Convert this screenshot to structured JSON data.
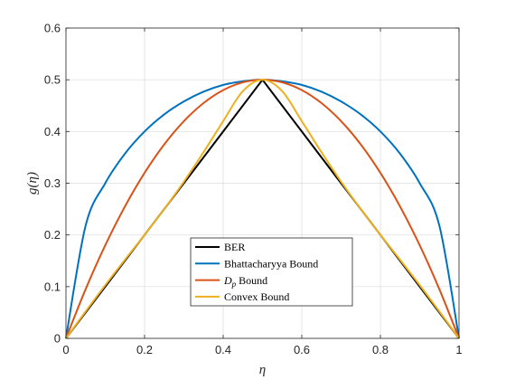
{
  "chart_data": {
    "type": "line",
    "xlabel": "η",
    "ylabel": "g(η)",
    "xlim": [
      0,
      1
    ],
    "ylim": [
      0,
      0.6
    ],
    "xticks": [
      0,
      0.2,
      0.4,
      0.6,
      0.8,
      1
    ],
    "yticks": [
      0,
      0.1,
      0.2,
      0.3,
      0.4,
      0.5,
      0.6
    ],
    "xtick_labels": [
      "0",
      "0.2",
      "0.4",
      "0.6",
      "0.8",
      "1"
    ],
    "ytick_labels": [
      "0",
      "0.1",
      "0.2",
      "0.3",
      "0.4",
      "0.5",
      "0.6"
    ],
    "grid": true,
    "legend_position": "bottom-center",
    "x": [
      0,
      0.05,
      0.1,
      0.15,
      0.2,
      0.25,
      0.3,
      0.35,
      0.4,
      0.45,
      0.5,
      0.55,
      0.6,
      0.65,
      0.7,
      0.75,
      0.8,
      0.85,
      0.9,
      0.95,
      1
    ],
    "series": [
      {
        "name": "BER",
        "color": "#000000",
        "values": [
          0,
          0.05,
          0.1,
          0.15,
          0.2,
          0.25,
          0.3,
          0.35,
          0.4,
          0.45,
          0.5,
          0.45,
          0.4,
          0.35,
          0.3,
          0.25,
          0.2,
          0.15,
          0.1,
          0.05,
          0
        ]
      },
      {
        "name": "Bhattacharyya Bound",
        "color": "#0072BD",
        "values": [
          0,
          0.218,
          0.3,
          0.357,
          0.4,
          0.433,
          0.458,
          0.477,
          0.49,
          0.497,
          0.5,
          0.497,
          0.49,
          0.477,
          0.458,
          0.433,
          0.4,
          0.357,
          0.3,
          0.218,
          0
        ]
      },
      {
        "name": "D_p Bound",
        "color": "#D95319",
        "values": [
          0,
          0.095,
          0.18,
          0.255,
          0.32,
          0.375,
          0.42,
          0.455,
          0.48,
          0.495,
          0.5,
          0.495,
          0.48,
          0.455,
          0.42,
          0.375,
          0.32,
          0.255,
          0.18,
          0.095,
          0
        ]
      },
      {
        "name": "Convex Bound",
        "color": "#EDB120",
        "values": [
          0,
          0.052,
          0.103,
          0.152,
          0.2,
          0.25,
          0.303,
          0.36,
          0.42,
          0.478,
          0.5,
          0.478,
          0.42,
          0.36,
          0.303,
          0.25,
          0.2,
          0.152,
          0.103,
          0.052,
          0
        ]
      }
    ]
  }
}
